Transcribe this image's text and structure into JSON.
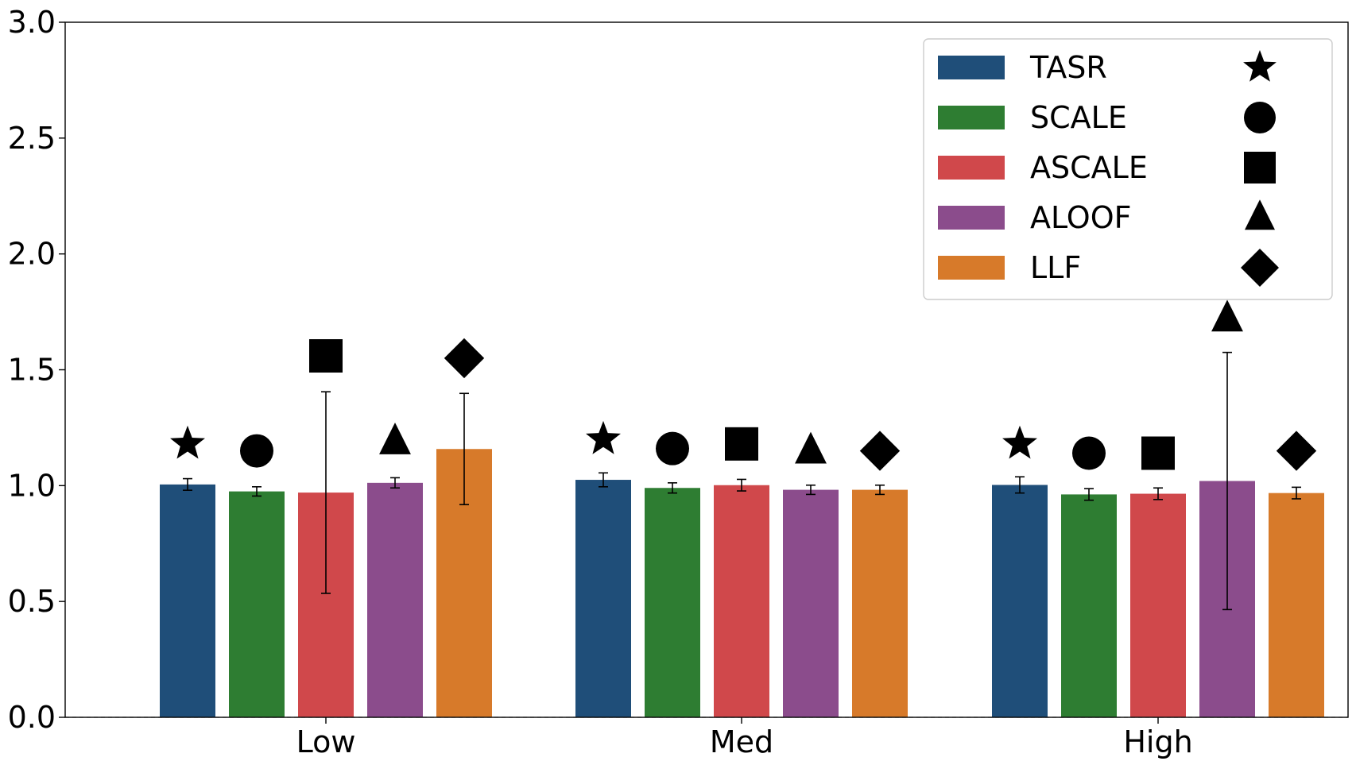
{
  "chart_data": {
    "type": "bar",
    "title": "",
    "xlabel": "",
    "ylabel": "",
    "ylim": [
      0,
      3.0
    ],
    "yticks": [
      "0.0",
      "0.5",
      "1.0",
      "1.5",
      "2.0",
      "2.5",
      "3.0"
    ],
    "categories": [
      "Low",
      "Med",
      "High"
    ],
    "grid": false,
    "baseline": {
      "value": 0.0,
      "style": "dashed"
    },
    "legend": {
      "placement": "top-right"
    },
    "series": [
      {
        "name": "TASR",
        "color": "#1f4e79",
        "marker": "star",
        "values": [
          1.005,
          1.025,
          1.003
        ],
        "errors": [
          0.025,
          0.03,
          0.035
        ],
        "marker_y": [
          1.18,
          1.2,
          1.18
        ]
      },
      {
        "name": "SCALE",
        "color": "#2e7d32",
        "marker": "circle",
        "values": [
          0.975,
          0.99,
          0.962
        ],
        "errors": [
          0.02,
          0.022,
          0.025
        ],
        "marker_y": [
          1.15,
          1.16,
          1.14
        ]
      },
      {
        "name": "ASCALE",
        "color": "#d0484b",
        "marker": "square",
        "values": [
          0.97,
          1.002,
          0.965
        ],
        "errors": [
          0.435,
          0.025,
          0.025
        ],
        "marker_y": [
          1.56,
          1.18,
          1.14
        ]
      },
      {
        "name": "ALOOF",
        "color": "#8b4c8c",
        "marker": "triangle",
        "values": [
          1.012,
          0.982,
          1.02
        ],
        "errors": [
          0.022,
          0.02,
          0.555
        ],
        "marker_y": [
          1.19,
          1.15,
          1.72
        ]
      },
      {
        "name": "LLF",
        "color": "#d77a2a",
        "marker": "diamond",
        "values": [
          1.158,
          0.982,
          0.968
        ],
        "errors": [
          0.24,
          0.02,
          0.025
        ],
        "marker_y": [
          1.55,
          1.15,
          1.15
        ]
      }
    ]
  }
}
